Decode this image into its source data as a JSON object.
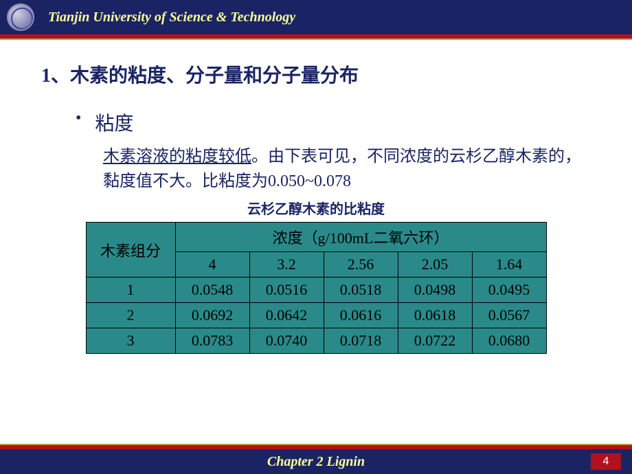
{
  "header": {
    "university": "Tianjin University of Science & Technology"
  },
  "slide": {
    "title": "1、木素的粘度、分子量和分子量分布",
    "bullet": "粘度",
    "para_underlined": "木素溶液的粘度较低",
    "para_rest_1": "。由下表可见，不同浓度的云杉乙醇木素的，黏度值不大。比粘度为0.050~0.078",
    "table_caption": "云杉乙醇木素的比粘度"
  },
  "table": {
    "row_header_label": "木素组分",
    "col_header_label": "浓度（g/100mL二氧六环）",
    "concentrations": [
      "4",
      "3.2",
      "2.56",
      "2.05",
      "1.64"
    ],
    "groups": [
      "1",
      "2",
      "3"
    ],
    "rows": [
      [
        "0.0548",
        "0.0516",
        "0.0518",
        "0.0498",
        "0.0495"
      ],
      [
        "0.0692",
        "0.0642",
        "0.0616",
        "0.0618",
        "0.0567"
      ],
      [
        "0.0783",
        "0.0740",
        "0.0718",
        "0.0722",
        "0.0680"
      ]
    ],
    "cell_background": "#2a8a8a",
    "border_color": "#000000"
  },
  "footer": {
    "chapter": "Chapter 2  Lignin",
    "page": "4"
  },
  "colors": {
    "navy": "#1a2464",
    "red_band": "#b01020",
    "gold_band": "#c0a030",
    "yellow_text": "#ffff99",
    "teal_cell": "#2a8a8a"
  }
}
